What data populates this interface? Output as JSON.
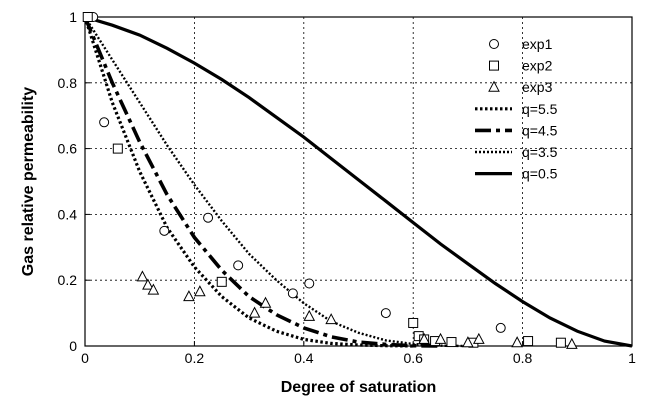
{
  "chart_data": {
    "type": "scatter",
    "title": "",
    "xlabel": "Degree of saturation",
    "ylabel": "Gas relative permeability",
    "xlim": [
      0,
      1
    ],
    "ylim": [
      0,
      1
    ],
    "x_ticks": [
      "0",
      "0.2",
      "0.4",
      "0.6",
      "0.8",
      "1"
    ],
    "y_ticks": [
      "0",
      "0.2",
      "0.4",
      "0.6",
      "0.8",
      "1"
    ],
    "grid": true,
    "legend_position": "top-right",
    "series": [
      {
        "name": "exp1",
        "kind": "points",
        "marker": "circle",
        "x": [
          0.015,
          0.035,
          0.145,
          0.225,
          0.28,
          0.38,
          0.41,
          0.55,
          0.76
        ],
        "y": [
          1.0,
          0.68,
          0.35,
          0.39,
          0.245,
          0.16,
          0.19,
          0.1,
          0.055
        ]
      },
      {
        "name": "exp2",
        "kind": "points",
        "marker": "square",
        "x": [
          0.005,
          0.06,
          0.25,
          0.6,
          0.61,
          0.62,
          0.64,
          0.67,
          0.71,
          0.81,
          0.87
        ],
        "y": [
          1.0,
          0.6,
          0.195,
          0.07,
          0.03,
          0.02,
          0.015,
          0.012,
          0.01,
          0.015,
          0.01
        ]
      },
      {
        "name": "exp3",
        "kind": "points",
        "marker": "triangle",
        "x": [
          0.105,
          0.115,
          0.125,
          0.19,
          0.21,
          0.31,
          0.33,
          0.41,
          0.45,
          0.62,
          0.65,
          0.7,
          0.72,
          0.79,
          0.89
        ],
        "y": [
          0.21,
          0.185,
          0.17,
          0.15,
          0.165,
          0.1,
          0.13,
          0.09,
          0.08,
          0.02,
          0.02,
          0.01,
          0.02,
          0.01,
          0.005
        ]
      },
      {
        "name": "q=5.5",
        "kind": "line",
        "style": "dotted-heavy",
        "x": [
          0,
          0.05,
          0.1,
          0.15,
          0.2,
          0.25,
          0.3,
          0.35,
          0.4,
          0.45,
          0.5,
          0.55,
          0.6
        ],
        "y": [
          1.0,
          0.74,
          0.53,
          0.36,
          0.24,
          0.15,
          0.085,
          0.045,
          0.02,
          0.008,
          0.003,
          0.001,
          0.0
        ]
      },
      {
        "name": "q=4.5",
        "kind": "line",
        "style": "long-dash",
        "x": [
          0,
          0.05,
          0.1,
          0.15,
          0.2,
          0.25,
          0.3,
          0.35,
          0.4,
          0.45,
          0.5,
          0.55,
          0.6,
          0.65
        ],
        "y": [
          1.0,
          0.8,
          0.62,
          0.46,
          0.33,
          0.23,
          0.15,
          0.095,
          0.055,
          0.028,
          0.012,
          0.005,
          0.001,
          0.0
        ]
      },
      {
        "name": "q=3.5",
        "kind": "line",
        "style": "dotted",
        "x": [
          0,
          0.05,
          0.1,
          0.15,
          0.2,
          0.25,
          0.3,
          0.35,
          0.4,
          0.45,
          0.5,
          0.55,
          0.6,
          0.65,
          0.7
        ],
        "y": [
          1.0,
          0.87,
          0.74,
          0.61,
          0.49,
          0.38,
          0.28,
          0.2,
          0.13,
          0.075,
          0.04,
          0.017,
          0.006,
          0.001,
          0.0
        ]
      },
      {
        "name": "q=0.5",
        "kind": "line",
        "style": "solid",
        "x": [
          0,
          0.05,
          0.1,
          0.15,
          0.2,
          0.25,
          0.3,
          0.35,
          0.4,
          0.45,
          0.5,
          0.55,
          0.6,
          0.65,
          0.7,
          0.75,
          0.8,
          0.85,
          0.9,
          0.95,
          1.0
        ],
        "y": [
          1.0,
          0.975,
          0.945,
          0.905,
          0.86,
          0.81,
          0.755,
          0.695,
          0.635,
          0.57,
          0.505,
          0.44,
          0.375,
          0.31,
          0.25,
          0.19,
          0.135,
          0.085,
          0.045,
          0.015,
          0.0
        ]
      }
    ]
  }
}
